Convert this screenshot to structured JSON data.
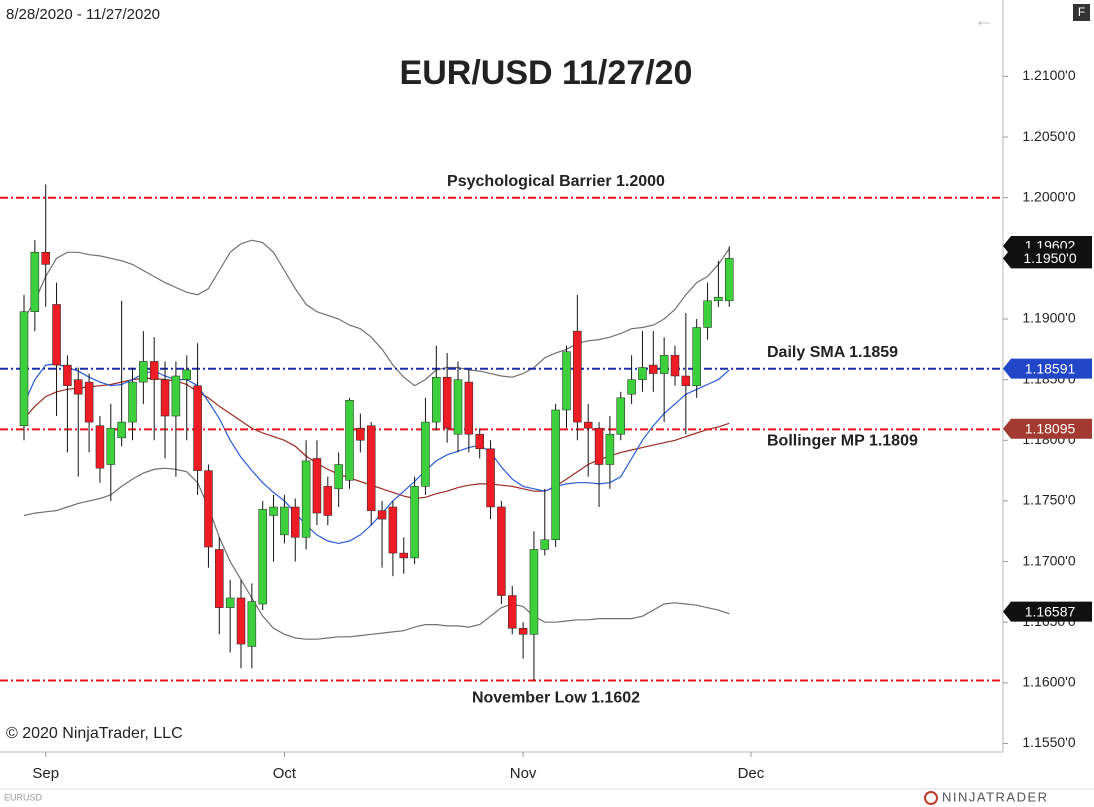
{
  "chart_data": {
    "type": "candlestick",
    "title": "EUR/USD 11/27/20",
    "date_range": "8/28/2020 - 11/27/2020",
    "copyright": "© 2020 NinjaTrader, LLC",
    "instrument": "EURUSD",
    "brand": "NINJATRADER",
    "badge": "F",
    "back_icon": "←",
    "up_color": "#3cd03c",
    "down_color": "#ee1c24",
    "ylim": [
      1.1543,
      1.2163
    ],
    "yticks": [
      {
        "value": 1.155,
        "label": "1.1550'0"
      },
      {
        "value": 1.16,
        "label": "1.1600'0"
      },
      {
        "value": 1.165,
        "label": "1.1650'0"
      },
      {
        "value": 1.17,
        "label": "1.1700'0"
      },
      {
        "value": 1.175,
        "label": "1.1750'0"
      },
      {
        "value": 1.18,
        "label": "1.1800'0"
      },
      {
        "value": 1.185,
        "label": "1.1850'0"
      },
      {
        "value": 1.19,
        "label": "1.1900'0"
      },
      {
        "value": 1.195,
        "label": "1.1950'0"
      },
      {
        "value": 1.2,
        "label": "1.2000'0"
      },
      {
        "value": 1.205,
        "label": "1.2050'0"
      },
      {
        "value": 1.21,
        "label": "1.2100'0"
      }
    ],
    "xticks": [
      {
        "value": 2,
        "label": "Sep"
      },
      {
        "value": 24,
        "label": "Oct"
      },
      {
        "value": 46,
        "label": "Nov"
      },
      {
        "value": 67,
        "label": "Dec"
      }
    ],
    "candles": [
      {
        "open": 1.1812,
        "high": 1.192,
        "low": 1.18,
        "close": 1.1906
      },
      {
        "open": 1.1906,
        "high": 1.1965,
        "low": 1.189,
        "close": 1.1955
      },
      {
        "open": 1.1955,
        "high": 1.2011,
        "low": 1.191,
        "close": 1.1945
      },
      {
        "open": 1.1912,
        "high": 1.193,
        "low": 1.182,
        "close": 1.1862
      },
      {
        "open": 1.1862,
        "high": 1.187,
        "low": 1.179,
        "close": 1.1845
      },
      {
        "open": 1.185,
        "high": 1.186,
        "low": 1.177,
        "close": 1.1838
      },
      {
        "open": 1.1848,
        "high": 1.1855,
        "low": 1.179,
        "close": 1.1815
      },
      {
        "open": 1.1812,
        "high": 1.182,
        "low": 1.1765,
        "close": 1.1777
      },
      {
        "open": 1.178,
        "high": 1.183,
        "low": 1.175,
        "close": 1.181
      },
      {
        "open": 1.1802,
        "high": 1.1915,
        "low": 1.1795,
        "close": 1.1815
      },
      {
        "open": 1.1815,
        "high": 1.186,
        "low": 1.18,
        "close": 1.1848
      },
      {
        "open": 1.1848,
        "high": 1.189,
        "low": 1.183,
        "close": 1.1865
      },
      {
        "open": 1.1865,
        "high": 1.1885,
        "low": 1.18,
        "close": 1.185
      },
      {
        "open": 1.185,
        "high": 1.1865,
        "low": 1.1785,
        "close": 1.182
      },
      {
        "open": 1.182,
        "high": 1.1865,
        "low": 1.177,
        "close": 1.1853
      },
      {
        "open": 1.185,
        "high": 1.187,
        "low": 1.18,
        "close": 1.1858
      },
      {
        "open": 1.1845,
        "high": 1.188,
        "low": 1.1755,
        "close": 1.1775
      },
      {
        "open": 1.1775,
        "high": 1.178,
        "low": 1.1695,
        "close": 1.1712
      },
      {
        "open": 1.171,
        "high": 1.172,
        "low": 1.164,
        "close": 1.1662
      },
      {
        "open": 1.1662,
        "high": 1.1685,
        "low": 1.1625,
        "close": 1.167
      },
      {
        "open": 1.167,
        "high": 1.1685,
        "low": 1.1612,
        "close": 1.1632
      },
      {
        "open": 1.163,
        "high": 1.1682,
        "low": 1.1612,
        "close": 1.1667
      },
      {
        "open": 1.1665,
        "high": 1.175,
        "low": 1.166,
        "close": 1.1743
      },
      {
        "open": 1.1738,
        "high": 1.1755,
        "low": 1.17,
        "close": 1.1745
      },
      {
        "open": 1.1722,
        "high": 1.1755,
        "low": 1.1715,
        "close": 1.1745
      },
      {
        "open": 1.1745,
        "high": 1.1752,
        "low": 1.17,
        "close": 1.172
      },
      {
        "open": 1.172,
        "high": 1.18,
        "low": 1.171,
        "close": 1.1783
      },
      {
        "open": 1.1785,
        "high": 1.18,
        "low": 1.173,
        "close": 1.174
      },
      {
        "open": 1.1762,
        "high": 1.177,
        "low": 1.173,
        "close": 1.1738
      },
      {
        "open": 1.176,
        "high": 1.179,
        "low": 1.1745,
        "close": 1.178
      },
      {
        "open": 1.1767,
        "high": 1.1835,
        "low": 1.176,
        "close": 1.1833
      },
      {
        "open": 1.181,
        "high": 1.1822,
        "low": 1.179,
        "close": 1.18
      },
      {
        "open": 1.1812,
        "high": 1.1815,
        "low": 1.173,
        "close": 1.1742
      },
      {
        "open": 1.1742,
        "high": 1.175,
        "low": 1.1695,
        "close": 1.1735
      },
      {
        "open": 1.1745,
        "high": 1.175,
        "low": 1.1688,
        "close": 1.1707
      },
      {
        "open": 1.1707,
        "high": 1.172,
        "low": 1.169,
        "close": 1.1703
      },
      {
        "open": 1.1703,
        "high": 1.177,
        "low": 1.1698,
        "close": 1.1762
      },
      {
        "open": 1.1762,
        "high": 1.1835,
        "low": 1.1755,
        "close": 1.1815
      },
      {
        "open": 1.1815,
        "high": 1.1878,
        "low": 1.1808,
        "close": 1.1852
      },
      {
        "open": 1.1852,
        "high": 1.1872,
        "low": 1.1798,
        "close": 1.181
      },
      {
        "open": 1.1805,
        "high": 1.1865,
        "low": 1.179,
        "close": 1.185
      },
      {
        "open": 1.1848,
        "high": 1.1858,
        "low": 1.179,
        "close": 1.1805
      },
      {
        "open": 1.1805,
        "high": 1.181,
        "low": 1.1785,
        "close": 1.1793
      },
      {
        "open": 1.1793,
        "high": 1.18,
        "low": 1.1735,
        "close": 1.1745
      },
      {
        "open": 1.1745,
        "high": 1.175,
        "low": 1.1665,
        "close": 1.1672
      },
      {
        "open": 1.1672,
        "high": 1.168,
        "low": 1.164,
        "close": 1.1645
      },
      {
        "open": 1.1645,
        "high": 1.165,
        "low": 1.162,
        "close": 1.164
      },
      {
        "open": 1.164,
        "high": 1.1725,
        "low": 1.1602,
        "close": 1.171
      },
      {
        "open": 1.171,
        "high": 1.176,
        "low": 1.1705,
        "close": 1.1718
      },
      {
        "open": 1.1718,
        "high": 1.183,
        "low": 1.1712,
        "close": 1.1825
      },
      {
        "open": 1.1825,
        "high": 1.1878,
        "low": 1.181,
        "close": 1.1873
      },
      {
        "open": 1.189,
        "high": 1.192,
        "low": 1.18,
        "close": 1.1815
      },
      {
        "open": 1.1815,
        "high": 1.183,
        "low": 1.177,
        "close": 1.181
      },
      {
        "open": 1.181,
        "high": 1.1815,
        "low": 1.1745,
        "close": 1.178
      },
      {
        "open": 1.178,
        "high": 1.182,
        "low": 1.176,
        "close": 1.1805
      },
      {
        "open": 1.1805,
        "high": 1.184,
        "low": 1.18,
        "close": 1.1835
      },
      {
        "open": 1.1838,
        "high": 1.187,
        "low": 1.183,
        "close": 1.185
      },
      {
        "open": 1.185,
        "high": 1.189,
        "low": 1.184,
        "close": 1.186
      },
      {
        "open": 1.1862,
        "high": 1.189,
        "low": 1.184,
        "close": 1.1855
      },
      {
        "open": 1.1855,
        "high": 1.1885,
        "low": 1.1815,
        "close": 1.187
      },
      {
        "open": 1.187,
        "high": 1.1878,
        "low": 1.1845,
        "close": 1.1853
      },
      {
        "open": 1.1853,
        "high": 1.1905,
        "low": 1.1805,
        "close": 1.1845
      },
      {
        "open": 1.1845,
        "high": 1.19,
        "low": 1.1835,
        "close": 1.1893
      },
      {
        "open": 1.1893,
        "high": 1.193,
        "low": 1.1883,
        "close": 1.1915
      },
      {
        "open": 1.1915,
        "high": 1.1948,
        "low": 1.191,
        "close": 1.1918
      },
      {
        "open": 1.1915,
        "high": 1.196,
        "low": 1.191,
        "close": 1.195
      }
    ],
    "overlays": [
      {
        "color": "#707070",
        "values": [
          1.19,
          1.1915,
          1.1935,
          1.195,
          1.1955,
          1.1955,
          1.1953,
          1.1952,
          1.195,
          1.1948,
          1.1945,
          1.194,
          1.1935,
          1.193,
          1.1926,
          1.1922,
          1.192,
          1.1925,
          1.194,
          1.1955,
          1.1962,
          1.1965,
          1.1963,
          1.1955,
          1.194,
          1.1925,
          1.1912,
          1.1906,
          1.1903,
          1.19,
          1.1895,
          1.1892,
          1.1885,
          1.1875,
          1.1862,
          1.1852,
          1.1845,
          1.185,
          1.1858,
          1.186,
          1.186,
          1.1858,
          1.1857,
          1.1855,
          1.1853,
          1.1852,
          1.1855,
          1.186,
          1.1868,
          1.1872,
          1.1875,
          1.188,
          1.1882,
          1.1883,
          1.1885,
          1.1888,
          1.1892,
          1.1893,
          1.1895,
          1.19,
          1.1908,
          1.192,
          1.193,
          1.1935,
          1.1945,
          1.1958
        ]
      },
      {
        "color": "#707070",
        "values": [
          1.1738,
          1.174,
          1.1741,
          1.1742,
          1.1745,
          1.1748,
          1.175,
          1.1752,
          1.1755,
          1.1762,
          1.1768,
          1.1773,
          1.1776,
          1.1777,
          1.1776,
          1.1774,
          1.1765,
          1.1745,
          1.172,
          1.17,
          1.1685,
          1.167,
          1.1655,
          1.1645,
          1.164,
          1.1637,
          1.1636,
          1.1636,
          1.1637,
          1.1638,
          1.1638,
          1.1639,
          1.164,
          1.1641,
          1.1642,
          1.1643,
          1.1646,
          1.1648,
          1.1648,
          1.1647,
          1.1647,
          1.1646,
          1.1648,
          1.1655,
          1.1662,
          1.1665,
          1.1663,
          1.1655,
          1.165,
          1.165,
          1.1651,
          1.1652,
          1.1652,
          1.1653,
          1.1653,
          1.1653,
          1.1653,
          1.1655,
          1.166,
          1.1665,
          1.1666,
          1.1665,
          1.1664,
          1.1662,
          1.166,
          1.1657
        ]
      },
      {
        "color": "#9b2a22",
        "values": [
          1.1818,
          1.1828,
          1.1836,
          1.184,
          1.1842,
          1.1843,
          1.1844,
          1.1845,
          1.1846,
          1.1848,
          1.185,
          1.1851,
          1.1851,
          1.185,
          1.1849,
          1.1846,
          1.184,
          1.1835,
          1.1828,
          1.1822,
          1.1816,
          1.181,
          1.1806,
          1.1803,
          1.18,
          1.1795,
          1.1787,
          1.1781,
          1.1776,
          1.1772,
          1.1769,
          1.1766,
          1.1763,
          1.176,
          1.1757,
          1.1754,
          1.1752,
          1.1753,
          1.1756,
          1.1758,
          1.1761,
          1.1763,
          1.1764,
          1.1764,
          1.1763,
          1.1762,
          1.176,
          1.1758,
          1.1758,
          1.1762,
          1.1768,
          1.1774,
          1.178,
          1.1784,
          1.1787,
          1.179,
          1.1792,
          1.1794,
          1.1796,
          1.1798,
          1.18,
          1.1803,
          1.1806,
          1.1809,
          1.1811,
          1.1814
        ]
      },
      {
        "color": "#2a5bd7",
        "values": [
          1.183,
          1.185,
          1.1862,
          1.1863,
          1.186,
          1.1857,
          1.1852,
          1.1848,
          1.1845,
          1.1846,
          1.185,
          1.1855,
          1.1857,
          1.1853,
          1.185,
          1.185,
          1.1845,
          1.1832,
          1.1818,
          1.18,
          1.1786,
          1.1775,
          1.1765,
          1.1757,
          1.175,
          1.174,
          1.173,
          1.1722,
          1.1717,
          1.1715,
          1.1717,
          1.1722,
          1.173,
          1.174,
          1.175,
          1.1758,
          1.1766,
          1.1775,
          1.1783,
          1.1788,
          1.1791,
          1.1794,
          1.1796,
          1.179,
          1.1778,
          1.1768,
          1.1762,
          1.176,
          1.1758,
          1.1762,
          1.1764,
          1.1765,
          1.1765,
          1.1764,
          1.1765,
          1.177,
          1.1785,
          1.18,
          1.1812,
          1.1822,
          1.183,
          1.1838,
          1.1842,
          1.1846,
          1.185,
          1.1858
        ]
      }
    ],
    "levels": [
      {
        "value": 1.2,
        "label": "Psychological Barrier 1.2000",
        "color": "#e8141c",
        "label_x": "center"
      },
      {
        "value": 1.1859,
        "label": "Daily SMA 1.1859",
        "color": "#1d2fa8",
        "label_x": "right"
      },
      {
        "value": 1.1809,
        "label": "Bollinger MP 1.1809",
        "color": "#e8141c",
        "label_x": "right"
      },
      {
        "value": 1.1602,
        "label": "November Low 1.1602",
        "color": "#e8141c",
        "label_x": "center"
      }
    ],
    "price_tags": [
      {
        "value": 1.19602,
        "color": "#111111"
      },
      {
        "value": 1.195,
        "label": "1.1950'0",
        "color": "#111111"
      },
      {
        "value": 1.18591,
        "color": "#2146c7"
      },
      {
        "value": 1.18095,
        "color": "#a23a32"
      },
      {
        "value": 1.16587,
        "color": "#111111"
      }
    ]
  }
}
